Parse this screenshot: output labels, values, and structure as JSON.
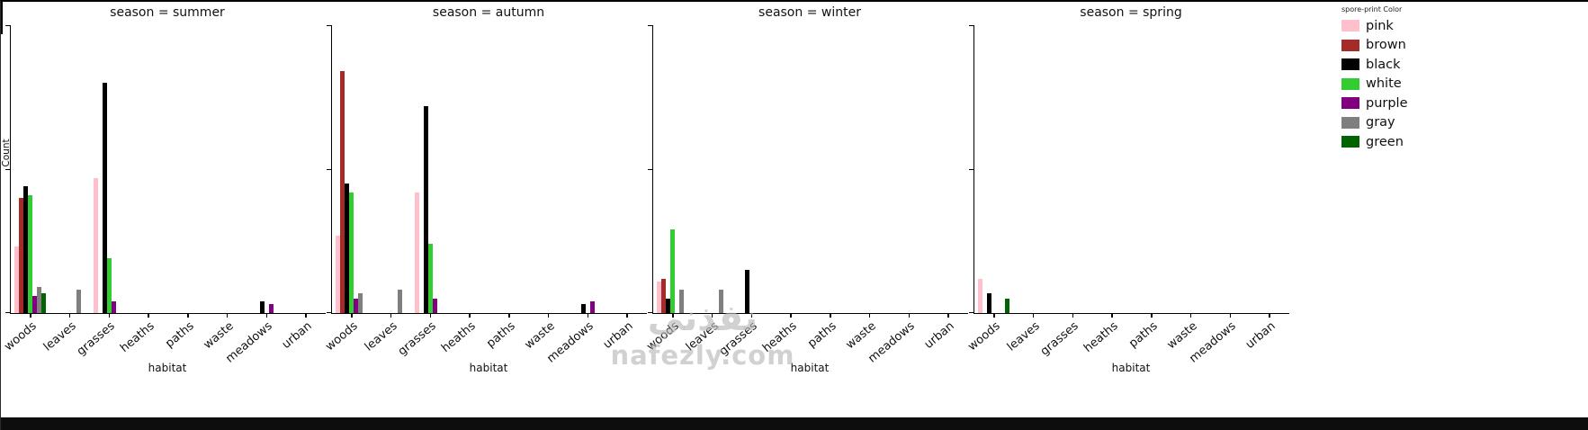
{
  "chart_data": {
    "type": "bar",
    "facet_variable": "season",
    "facets": [
      "summer",
      "autumn",
      "winter",
      "spring"
    ],
    "facet_titles": [
      "season = summer",
      "season = autumn",
      "season = winter",
      "season = spring"
    ],
    "categories": [
      "woods",
      "leaves",
      "grasses",
      "heaths",
      "paths",
      "waste",
      "meadows",
      "urban"
    ],
    "xlabel": "habitat",
    "ylabel": "Count",
    "ylim": [
      0,
      100
    ],
    "yticks": [
      0,
      50,
      100
    ],
    "legend_title": "spore-print Color",
    "hues": [
      {
        "name": "pink",
        "color": "#ffc0cb"
      },
      {
        "name": "brown",
        "color": "#a52a2a"
      },
      {
        "name": "black",
        "color": "#000000"
      },
      {
        "name": "white",
        "color": "#32cd32"
      },
      {
        "name": "purple",
        "color": "#800080"
      },
      {
        "name": "gray",
        "color": "#7f7f7f"
      },
      {
        "name": "green",
        "color": "#006400"
      }
    ],
    "series_by_facet": {
      "summer": {
        "pink": [
          23,
          0,
          47,
          0,
          0,
          0,
          0,
          0
        ],
        "brown": [
          40,
          0,
          0,
          0,
          0,
          0,
          0,
          0
        ],
        "black": [
          44,
          0,
          80,
          0,
          0,
          0,
          4,
          0
        ],
        "white": [
          41,
          0,
          19,
          0,
          0,
          0,
          0,
          0
        ],
        "purple": [
          6,
          0,
          4,
          0,
          0,
          0,
          3,
          0
        ],
        "gray": [
          9,
          8,
          0,
          0,
          0,
          0,
          0,
          0
        ],
        "green": [
          7,
          0,
          0,
          0,
          0,
          0,
          0,
          0
        ]
      },
      "autumn": {
        "pink": [
          27,
          0,
          42,
          0,
          0,
          0,
          0,
          0
        ],
        "brown": [
          84,
          0,
          0,
          0,
          0,
          0,
          0,
          0
        ],
        "black": [
          45,
          0,
          72,
          0,
          0,
          0,
          3,
          0
        ],
        "white": [
          42,
          0,
          24,
          0,
          0,
          0,
          0,
          0
        ],
        "purple": [
          5,
          0,
          5,
          0,
          0,
          0,
          4,
          0
        ],
        "gray": [
          7,
          8,
          0,
          0,
          0,
          0,
          0,
          0
        ],
        "green": [
          0,
          0,
          0,
          0,
          0,
          0,
          0,
          0
        ]
      },
      "winter": {
        "pink": [
          11,
          0,
          0,
          0,
          0,
          0,
          0,
          0
        ],
        "brown": [
          12,
          0,
          0,
          0,
          0,
          0,
          0,
          0
        ],
        "black": [
          5,
          0,
          15,
          0,
          0,
          0,
          0,
          0
        ],
        "white": [
          29,
          0,
          0,
          0,
          0,
          0,
          0,
          0
        ],
        "purple": [
          0,
          0,
          0,
          0,
          0,
          0,
          0,
          0
        ],
        "gray": [
          8,
          8,
          0,
          0,
          0,
          0,
          0,
          0
        ],
        "green": [
          0,
          0,
          0,
          0,
          0,
          0,
          0,
          0
        ]
      },
      "spring": {
        "pink": [
          12,
          0,
          0,
          0,
          0,
          0,
          0,
          0
        ],
        "brown": [
          0,
          0,
          0,
          0,
          0,
          0,
          0,
          0
        ],
        "black": [
          7,
          0,
          0,
          0,
          0,
          0,
          0,
          0
        ],
        "white": [
          0,
          0,
          0,
          0,
          0,
          0,
          0,
          0
        ],
        "purple": [
          0,
          0,
          0,
          0,
          0,
          0,
          0,
          0
        ],
        "gray": [
          0,
          0,
          0,
          0,
          0,
          0,
          0,
          0
        ],
        "green": [
          5,
          0,
          0,
          0,
          0,
          0,
          0,
          0
        ]
      }
    }
  },
  "watermark": {
    "line1": "نفذني",
    "line2": "nafezly.com"
  }
}
